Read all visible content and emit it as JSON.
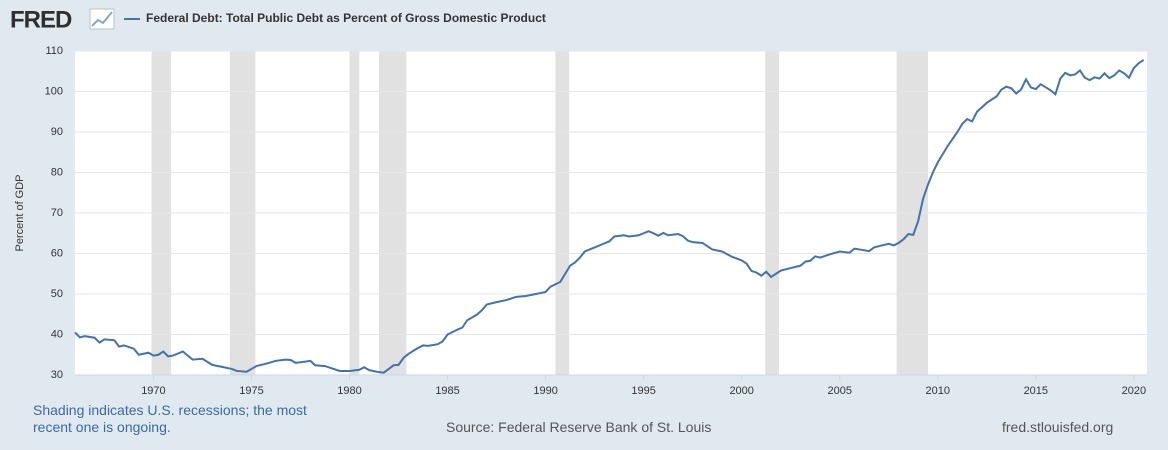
{
  "chart_data": {
    "type": "line",
    "logo": "FRED",
    "y_label": "Percent of GDP",
    "note": "Shading indicates U.S. recessions; the most recent one is ongoing.",
    "source": "Source: Federal Reserve Bank of St. Louis",
    "site": "fred.stlouisfed.org",
    "xlim": [
      1966.0,
      2020.67
    ],
    "ylim": [
      30,
      110
    ],
    "xticks": [
      1970,
      1975,
      1980,
      1985,
      1990,
      1995,
      2000,
      2005,
      2010,
      2015,
      2020
    ],
    "yticks": [
      30,
      40,
      50,
      60,
      70,
      80,
      90,
      100,
      110
    ],
    "grid": true,
    "recession_color": "#e1e1e1",
    "recessions": [
      [
        1969.9,
        1970.9
      ],
      [
        1973.9,
        1975.2
      ],
      [
        1980.0,
        1980.5
      ],
      [
        1981.5,
        1982.9
      ],
      [
        1990.5,
        1991.2
      ],
      [
        2001.2,
        2001.9
      ],
      [
        2007.9,
        2009.5
      ]
    ],
    "x": [
      1966.0,
      1966.25,
      1966.5,
      1967,
      1967.25,
      1967.5,
      1968,
      1968.25,
      1968.5,
      1969,
      1969.25,
      1969.75,
      1970,
      1970.25,
      1970.5,
      1970.75,
      1971,
      1971.5,
      1972,
      1972.5,
      1973,
      1973.5,
      1974,
      1974.25,
      1974.75,
      1975,
      1975.25,
      1975.75,
      1976.25,
      1976.75,
      1977,
      1977.25,
      1977.75,
      1978,
      1978.25,
      1978.75,
      1979,
      1979.5,
      1980,
      1980.5,
      1980.75,
      1981,
      1981.5,
      1981.75,
      1982,
      1982.25,
      1982.5,
      1982.75,
      1983,
      1983.5,
      1983.75,
      1984,
      1984.5,
      1984.75,
      1985,
      1985.5,
      1985.75,
      1986,
      1986.5,
      1986.75,
      1987,
      1987.5,
      1988,
      1988.5,
      1989,
      1989.5,
      1990,
      1990.25,
      1990.75,
      1991,
      1991.25,
      1991.5,
      1991.75,
      1992,
      1992.5,
      1993,
      1993.25,
      1993.5,
      1994,
      1994.25,
      1994.75,
      1995,
      1995.25,
      1995.5,
      1995.75,
      1996,
      1996.25,
      1996.75,
      1997,
      1997.25,
      1997.5,
      1998,
      1998.5,
      1999,
      1999.5,
      2000,
      2000.25,
      2000.5,
      2000.75,
      2001,
      2001.25,
      2001.5,
      2001.75,
      2002,
      2002.5,
      2003,
      2003.25,
      2003.5,
      2003.75,
      2004,
      2004.5,
      2005,
      2005.5,
      2005.75,
      2006,
      2006.5,
      2006.75,
      2007,
      2007.5,
      2007.75,
      2008,
      2008.25,
      2008.5,
      2008.75,
      2009,
      2009.25,
      2009.5,
      2009.75,
      2010,
      2010.5,
      2011,
      2011.25,
      2011.5,
      2011.75,
      2012,
      2012.5,
      2013,
      2013.25,
      2013.5,
      2013.75,
      2014,
      2014.25,
      2014.5,
      2014.75,
      2015,
      2015.25,
      2015.75,
      2016,
      2016.25,
      2016.5,
      2016.75,
      2017,
      2017.25,
      2017.5,
      2017.75,
      2018,
      2018.25,
      2018.5,
      2018.75,
      2019,
      2019.25,
      2019.5,
      2019.75,
      2020,
      2020.25,
      2020.5
    ],
    "series": [
      {
        "name": "Federal Debt: Total Public Debt as Percent of Gross Domestic Product",
        "color": "#4572a7",
        "values": [
          40.5,
          39.3,
          39.6,
          39.2,
          38.0,
          38.8,
          38.6,
          37.0,
          37.3,
          36.5,
          35.0,
          35.5,
          34.8,
          35.0,
          35.8,
          34.6,
          34.8,
          35.8,
          33.8,
          34.0,
          32.5,
          32.0,
          31.5,
          31.0,
          30.8,
          31.5,
          32.2,
          32.8,
          33.5,
          33.8,
          33.7,
          33.0,
          33.3,
          33.5,
          32.4,
          32.2,
          31.8,
          31.0,
          31.0,
          31.3,
          31.9,
          31.2,
          30.7,
          30.6,
          31.5,
          32.4,
          32.5,
          34.2,
          35.2,
          36.7,
          37.3,
          37.2,
          37.6,
          38.3,
          40.0,
          41.2,
          41.7,
          43.5,
          44.9,
          46.0,
          47.4,
          48.0,
          48.5,
          49.3,
          49.5,
          50.0,
          50.5,
          51.8,
          53.0,
          55.0,
          57.0,
          57.8,
          59.0,
          60.5,
          61.5,
          62.5,
          63.0,
          64.2,
          64.5,
          64.2,
          64.5,
          65.0,
          65.5,
          65.0,
          64.4,
          65.1,
          64.5,
          64.8,
          64.3,
          63.2,
          62.8,
          62.6,
          61.0,
          60.5,
          59.2,
          58.3,
          57.5,
          55.7,
          55.3,
          54.5,
          55.5,
          54.2,
          55.0,
          55.8,
          56.4,
          57.0,
          58.0,
          58.2,
          59.3,
          59.0,
          59.8,
          60.5,
          60.2,
          61.2,
          61.0,
          60.6,
          61.5,
          61.8,
          62.4,
          62.0,
          62.6,
          63.5,
          64.8,
          64.6,
          68.0,
          73.5,
          77.0,
          80.0,
          82.5,
          86.5,
          90.0,
          92.0,
          93.2,
          92.6,
          95.0,
          97.2,
          98.8,
          100.5,
          101.2,
          100.8,
          99.5,
          100.5,
          103.0,
          101.0,
          100.6,
          101.8,
          100.3,
          99.3,
          103.2,
          104.6,
          104.0,
          104.2,
          105.2,
          103.4,
          102.8,
          103.5,
          103.2,
          104.5,
          103.3,
          104.0,
          105.2,
          104.5,
          103.4,
          105.8,
          107.0,
          107.8
        ]
      }
    ]
  }
}
